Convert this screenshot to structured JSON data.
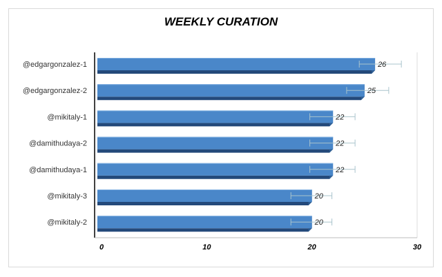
{
  "chart_data": {
    "type": "bar",
    "orientation": "horizontal",
    "title": "WEEKLY CURATION",
    "xlabel": "",
    "ylabel": "",
    "categories": [
      "@edgargonzalez-1",
      "@edgargonzalez-2",
      "@mikitaly-1",
      "@damithudaya-2",
      "@damithudaya-1",
      "@mikitaly-3",
      "@mikitaly-2"
    ],
    "values": [
      26,
      25,
      22,
      22,
      22,
      20,
      20
    ],
    "error_bars": [
      [
        24.5,
        28.5
      ],
      [
        23.3,
        27.3
      ],
      [
        19.8,
        24.1
      ],
      [
        19.8,
        24.1
      ],
      [
        19.8,
        24.1
      ],
      [
        18.0,
        21.9
      ],
      [
        18.0,
        21.9
      ]
    ],
    "xlim": [
      0,
      30
    ],
    "ticks": [
      "0",
      "10",
      "20",
      "30"
    ],
    "grid": true,
    "legend": "none",
    "colors": {
      "bar": "#4a87c9",
      "bar_side": "#2f5f95",
      "bar_bottom": "#23497a",
      "bar_top": "#7eaee0",
      "error": "#a9c4cc",
      "grid": "#dcdcdc"
    }
  }
}
